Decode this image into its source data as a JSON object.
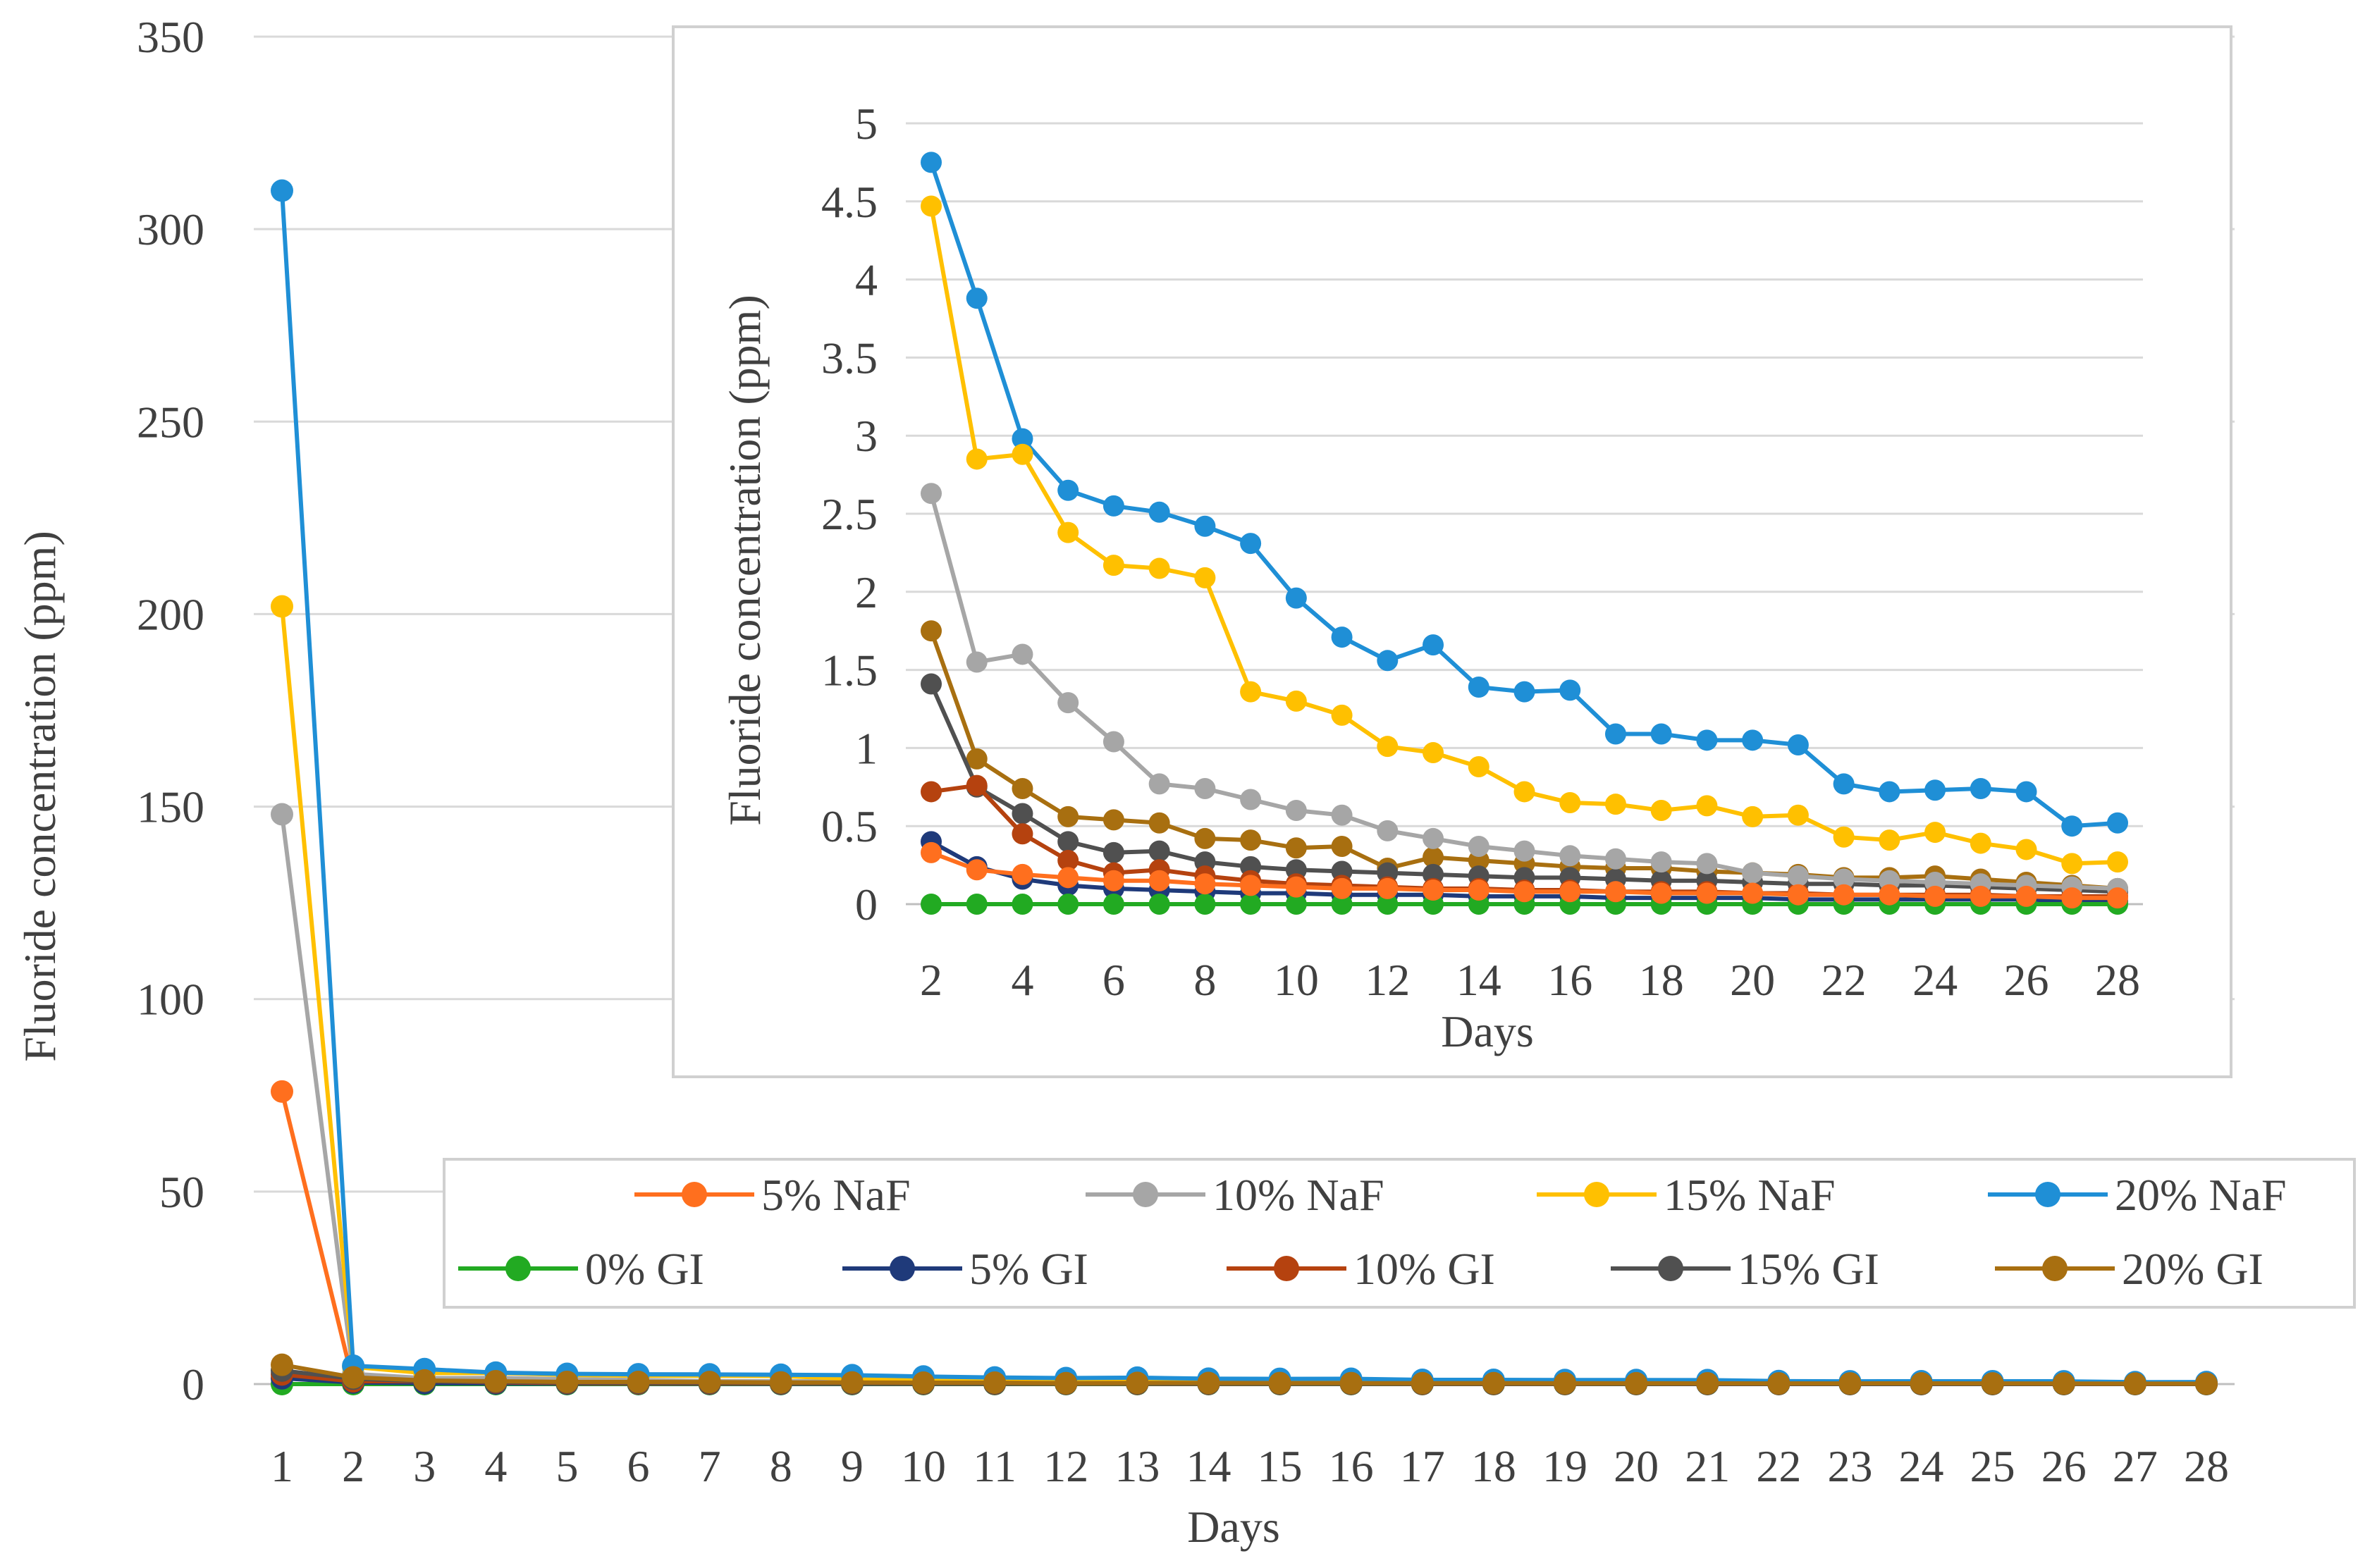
{
  "colors": {
    "5% NaF": "#ff6f1e",
    "10% NaF": "#a6a6a6",
    "15% NaF": "#ffc000",
    "20% NaF": "#1f8fd6",
    "0% GI": "#22aa22",
    "5% GI": "#1f3a7a",
    "10% GI": "#b5420f",
    "15% GI": "#505050",
    "20% GI": "#a86f10"
  },
  "chart_data": [
    {
      "type": "line",
      "title": "",
      "xlabel": "Days",
      "ylabel": "Fluoride concentration (ppm)",
      "categories": [
        "1",
        "2",
        "3",
        "4",
        "5",
        "6",
        "7",
        "8",
        "9",
        "10",
        "11",
        "12",
        "13",
        "14",
        "15",
        "16",
        "17",
        "18",
        "19",
        "20",
        "21",
        "22",
        "23",
        "24",
        "25",
        "26",
        "27",
        "28"
      ],
      "ylim": [
        0,
        350
      ],
      "yticks": [
        "0",
        "50",
        "100",
        "150",
        "200",
        "250",
        "300",
        "350"
      ],
      "grid": true,
      "legend": "bottom-right",
      "series": [
        {
          "name": "5% NaF",
          "values": [
            76,
            0.33,
            0.22,
            0.19,
            0.17,
            0.15,
            0.15,
            0.13,
            0.12,
            0.11,
            0.1,
            0.1,
            0.09,
            0.09,
            0.08,
            0.08,
            0.08,
            0.07,
            0.07,
            0.07,
            0.06,
            0.06,
            0.06,
            0.05,
            0.05,
            0.05,
            0.04,
            0.04
          ]
        },
        {
          "name": "10% NaF",
          "values": [
            148,
            2.63,
            1.55,
            1.6,
            1.29,
            1.04,
            0.77,
            0.74,
            0.67,
            0.6,
            0.57,
            0.47,
            0.42,
            0.37,
            0.34,
            0.31,
            0.29,
            0.27,
            0.26,
            0.2,
            0.18,
            0.16,
            0.15,
            0.14,
            0.13,
            0.12,
            0.11,
            0.1
          ]
        },
        {
          "name": "15% NaF",
          "values": [
            202,
            4.47,
            2.85,
            2.88,
            2.38,
            2.17,
            2.15,
            2.09,
            1.36,
            1.3,
            1.21,
            1.01,
            0.97,
            0.88,
            0.72,
            0.65,
            0.64,
            0.6,
            0.63,
            0.56,
            0.57,
            0.43,
            0.41,
            0.46,
            0.39,
            0.35,
            0.26,
            0.27
          ]
        },
        {
          "name": "20% NaF",
          "values": [
            310,
            4.75,
            3.88,
            2.98,
            2.65,
            2.55,
            2.51,
            2.42,
            2.31,
            1.96,
            1.71,
            1.56,
            1.66,
            1.39,
            1.36,
            1.37,
            1.09,
            1.09,
            1.05,
            1.05,
            1.02,
            0.77,
            0.72,
            0.73,
            0.74,
            0.72,
            0.5,
            0.52
          ]
        },
        {
          "name": "0% GI",
          "values": [
            0,
            0,
            0,
            0,
            0,
            0,
            0,
            0,
            0,
            0,
            0,
            0,
            0,
            0,
            0,
            0,
            0,
            0,
            0,
            0,
            0,
            0,
            0,
            0,
            0,
            0,
            0,
            0
          ]
        },
        {
          "name": "5% GI",
          "values": [
            1.5,
            0.4,
            0.24,
            0.16,
            0.12,
            0.1,
            0.09,
            0.08,
            0.07,
            0.07,
            0.06,
            0.06,
            0.06,
            0.05,
            0.05,
            0.05,
            0.04,
            0.04,
            0.04,
            0.04,
            0.03,
            0.03,
            0.03,
            0.03,
            0.03,
            0.03,
            0.02,
            0.02
          ]
        },
        {
          "name": "10% GI",
          "values": [
            2.5,
            0.72,
            0.76,
            0.45,
            0.28,
            0.2,
            0.22,
            0.18,
            0.15,
            0.13,
            0.12,
            0.11,
            0.1,
            0.1,
            0.09,
            0.09,
            0.08,
            0.08,
            0.08,
            0.07,
            0.07,
            0.06,
            0.06,
            0.06,
            0.06,
            0.05,
            0.05,
            0.05
          ]
        },
        {
          "name": "15% GI",
          "values": [
            3.5,
            1.41,
            0.75,
            0.58,
            0.4,
            0.33,
            0.34,
            0.27,
            0.24,
            0.22,
            0.21,
            0.2,
            0.19,
            0.18,
            0.17,
            0.17,
            0.16,
            0.15,
            0.15,
            0.14,
            0.13,
            0.13,
            0.12,
            0.12,
            0.11,
            0.1,
            0.09,
            0.08
          ]
        },
        {
          "name": "20% GI",
          "values": [
            5,
            1.75,
            0.93,
            0.74,
            0.56,
            0.54,
            0.52,
            0.42,
            0.41,
            0.36,
            0.37,
            0.23,
            0.3,
            0.28,
            0.26,
            0.24,
            0.23,
            0.23,
            0.21,
            0.2,
            0.19,
            0.17,
            0.17,
            0.18,
            0.16,
            0.14,
            0.12,
            0.1
          ]
        }
      ]
    },
    {
      "type": "line",
      "title": "",
      "xlabel": "Days",
      "ylabel": "Fluoride concentration (ppm)",
      "categories": [
        "2",
        "3",
        "4",
        "5",
        "6",
        "7",
        "8",
        "9",
        "10",
        "11",
        "12",
        "13",
        "14",
        "15",
        "16",
        "17",
        "18",
        "19",
        "20",
        "21",
        "22",
        "23",
        "24",
        "25",
        "26",
        "27",
        "28"
      ],
      "xticks": [
        "2",
        "4",
        "6",
        "8",
        "10",
        "12",
        "14",
        "16",
        "18",
        "20",
        "22",
        "24",
        "26",
        "28"
      ],
      "ylim": [
        0,
        5
      ],
      "yticks": [
        "0",
        "0.5",
        "1",
        "1.5",
        "2",
        "2.5",
        "3",
        "3.5",
        "4",
        "4.5",
        "5"
      ],
      "grid": true,
      "note": "inset: same series as main chart, days 2-28"
    }
  ]
}
